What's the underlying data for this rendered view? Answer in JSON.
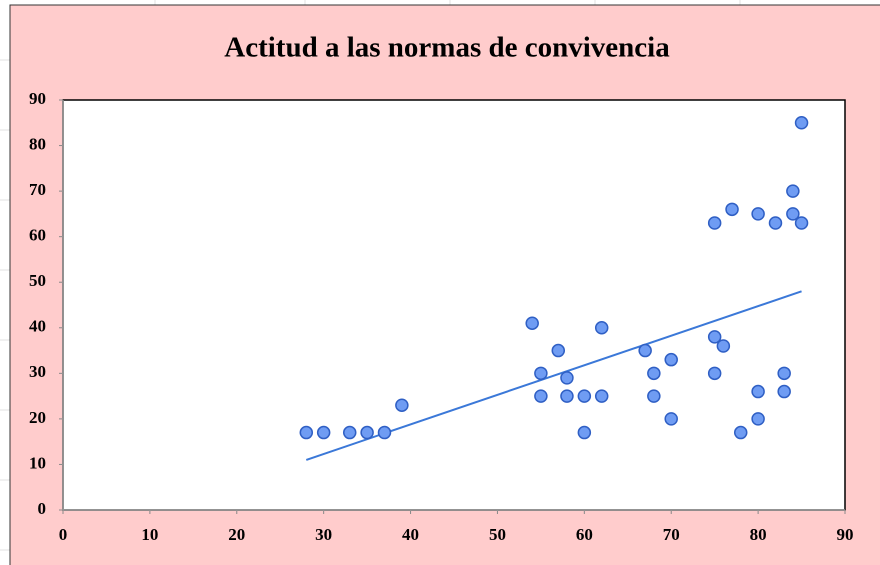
{
  "chart_data": {
    "type": "scatter",
    "title": "Actitud a las normas de convivencia",
    "x": [
      28,
      30,
      33,
      35,
      37,
      39,
      54,
      55,
      55,
      57,
      58,
      58,
      60,
      60,
      62,
      62,
      67,
      68,
      68,
      70,
      70,
      75,
      75,
      75,
      76,
      77,
      78,
      80,
      80,
      80,
      82,
      83,
      83,
      84,
      84,
      85,
      85
    ],
    "values": [
      17,
      17,
      17,
      17,
      17,
      23,
      41,
      30,
      25,
      35,
      29,
      25,
      25,
      17,
      40,
      25,
      35,
      30,
      25,
      33,
      20,
      63,
      38,
      30,
      36,
      66,
      17,
      65,
      26,
      20,
      63,
      30,
      26,
      70,
      65,
      85,
      63
    ],
    "color": "#6f9cf3",
    "trendline": {
      "x": [
        28,
        85
      ],
      "y": [
        11,
        48
      ],
      "color": "#3b78d8"
    },
    "xlim": [
      0,
      90
    ],
    "xticks": [
      0,
      10,
      20,
      30,
      40,
      50,
      60,
      70,
      80,
      90
    ],
    "ylim": [
      0,
      90
    ],
    "yticks": [
      0,
      10,
      20,
      30,
      40,
      50,
      60,
      70,
      80,
      90
    ],
    "grid": false
  }
}
